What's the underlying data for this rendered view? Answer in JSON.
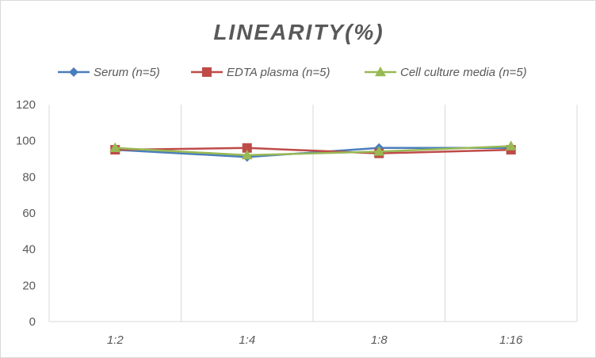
{
  "chart_data": {
    "type": "line",
    "title": "LINEARITY(%)",
    "xlabel": "",
    "ylabel": "",
    "categories": [
      "1:2",
      "1:4",
      "1:8",
      "1:16"
    ],
    "ylim": [
      0,
      120
    ],
    "yticks": [
      0,
      20,
      40,
      60,
      80,
      100,
      120
    ],
    "grid": "vertical",
    "legend_position": "top",
    "series": [
      {
        "name": "Serum (n=5)",
        "values": [
          95,
          91,
          96,
          96
        ],
        "color": "#4a7ebb",
        "marker": "diamond"
      },
      {
        "name": "EDTA plasma (n=5)",
        "values": [
          95,
          96,
          93,
          95
        ],
        "color": "#be4b48",
        "marker": "square"
      },
      {
        "name": "Cell culture media (n=5)",
        "values": [
          96,
          92,
          94,
          97
        ],
        "color": "#98b954",
        "marker": "triangle"
      }
    ]
  }
}
